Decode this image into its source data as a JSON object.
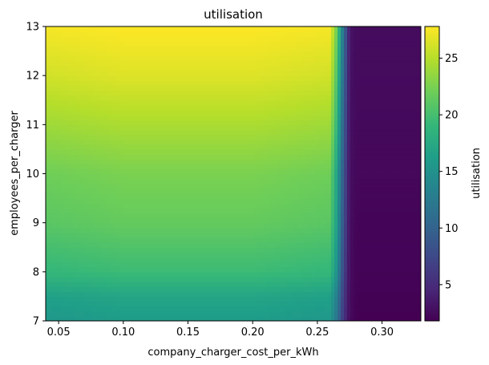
{
  "chart_data": {
    "type": "heatmap",
    "title": "utilisation",
    "xlabel": "company_charger_cost_per_kWh",
    "ylabel": "employees_per_charger",
    "colorbar_label": "utilisation",
    "colormap": "viridis",
    "xlim": [
      0.04,
      0.33
    ],
    "ylim": [
      7,
      13
    ],
    "clim": [
      1.8,
      27.8
    ],
    "x_ticks": [
      0.05,
      0.1,
      0.15,
      0.2,
      0.25,
      0.3
    ],
    "x_tick_labels": [
      "0.05",
      "0.10",
      "0.15",
      "0.20",
      "0.25",
      "0.30"
    ],
    "y_ticks": [
      7,
      8,
      9,
      10,
      11,
      12,
      13
    ],
    "y_tick_labels": [
      "7",
      "8",
      "9",
      "10",
      "11",
      "12",
      "13"
    ],
    "colorbar_ticks": [
      5,
      10,
      15,
      20,
      25
    ],
    "colorbar_tick_labels": [
      "5",
      "10",
      "15",
      "20",
      "25"
    ],
    "x": [
      0.04,
      0.1,
      0.15,
      0.2,
      0.26,
      0.265,
      0.27,
      0.275,
      0.28,
      0.33
    ],
    "y": [
      7,
      7.5,
      8,
      9,
      10,
      11,
      12,
      13
    ],
    "z": [
      [
        15.5,
        16.0,
        16.0,
        16.0,
        15.5,
        12.0,
        6.0,
        2.5,
        1.8,
        1.8
      ],
      [
        16.5,
        17.0,
        17.0,
        17.0,
        16.5,
        13.0,
        6.5,
        2.6,
        1.9,
        1.9
      ],
      [
        19.0,
        19.5,
        19.5,
        19.5,
        19.0,
        15.0,
        7.5,
        2.7,
        2.0,
        2.0
      ],
      [
        21.0,
        21.5,
        21.5,
        21.5,
        21.0,
        16.5,
        8.5,
        2.8,
        2.1,
        2.1
      ],
      [
        22.0,
        22.5,
        22.5,
        22.5,
        22.0,
        17.0,
        9.0,
        2.9,
        2.3,
        2.3
      ],
      [
        24.0,
        24.5,
        24.5,
        24.5,
        24.0,
        19.0,
        10.0,
        3.0,
        2.4,
        2.4
      ],
      [
        26.0,
        26.5,
        26.5,
        26.5,
        26.0,
        20.5,
        11.0,
        3.1,
        2.5,
        2.5
      ],
      [
        27.5,
        27.8,
        27.8,
        27.8,
        27.5,
        22.0,
        12.0,
        3.2,
        2.6,
        2.6
      ]
    ]
  }
}
